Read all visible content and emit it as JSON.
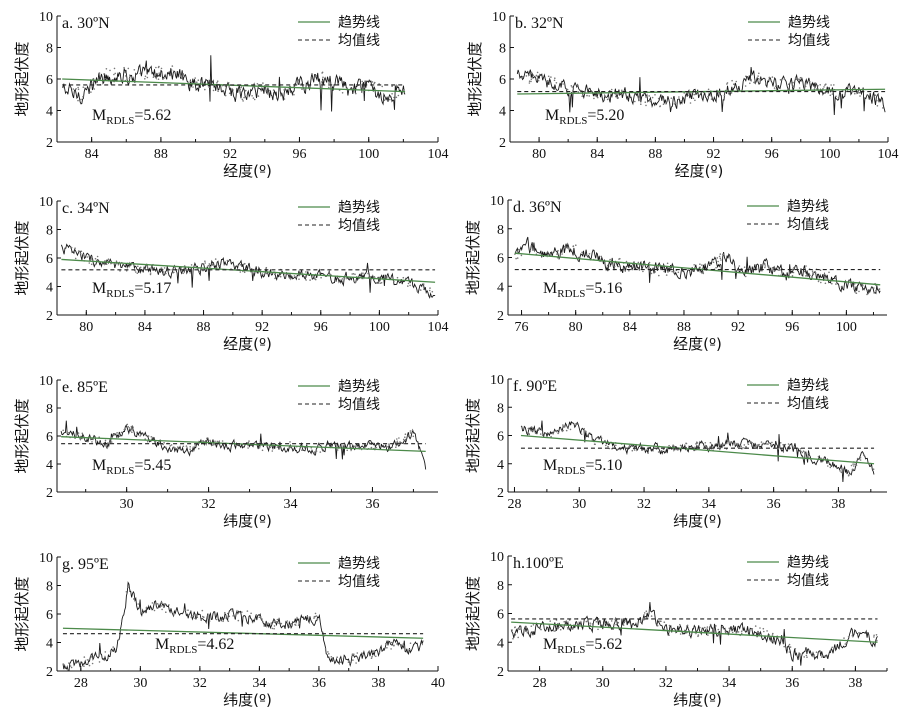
{
  "figure": {
    "colors": {
      "axis": "#111111",
      "data": "#1a1a1a",
      "trend": "#4c8a4a",
      "mean": "#222222"
    }
  },
  "chart_data": [
    {
      "id": "a",
      "type": "line",
      "title": "a. 30ºN",
      "xlabel": "经度(º)",
      "ylabel": "地形起伏度",
      "xlim": [
        82,
        104
      ],
      "ylim": [
        2,
        10
      ],
      "xticks": [
        84,
        88,
        92,
        96,
        100,
        104
      ],
      "yticks": [
        2,
        4,
        6,
        8,
        10
      ],
      "x_range": [
        82.3,
        102.1
      ],
      "mean_label": "M",
      "mean_subscript": "RDLS",
      "mean_value": "=5.62",
      "mean": 5.62,
      "trend": {
        "x": [
          82.3,
          102.1
        ],
        "y": [
          6.0,
          5.2
        ]
      },
      "profile": [
        [
          82.3,
          5.4
        ],
        [
          83,
          5.0
        ],
        [
          83.8,
          5.2
        ],
        [
          84.5,
          6.1
        ],
        [
          85.5,
          6.3
        ],
        [
          87,
          6.2
        ],
        [
          88.5,
          6.4
        ],
        [
          90,
          5.8
        ],
        [
          91,
          5.6
        ],
        [
          92,
          5.3
        ],
        [
          93,
          5.0
        ],
        [
          94,
          5.4
        ],
        [
          95,
          4.9
        ],
        [
          96,
          5.6
        ],
        [
          97,
          6.0
        ],
        [
          98,
          5.8
        ],
        [
          99,
          5.2
        ],
        [
          100,
          5.5
        ],
        [
          101,
          5.0
        ],
        [
          102.1,
          5.3
        ]
      ],
      "amp": 0.55,
      "legend": [
        {
          "name": "趋势线",
          "style": "trend"
        },
        {
          "name": "均值线",
          "style": "mean"
        }
      ]
    },
    {
      "id": "b",
      "type": "line",
      "title": "b. 32ºN",
      "xlabel": "经度(º)",
      "ylabel": "地形起伏度",
      "xlim": [
        78,
        104
      ],
      "ylim": [
        2,
        10
      ],
      "xticks": [
        80,
        84,
        88,
        92,
        96,
        100,
        104
      ],
      "yticks": [
        2,
        4,
        6,
        8,
        10
      ],
      "x_range": [
        78.5,
        103.8
      ],
      "mean_label": "M",
      "mean_subscript": "RDLS",
      "mean_value": "=5.20",
      "mean": 5.2,
      "trend": {
        "x": [
          78.5,
          103.8
        ],
        "y": [
          5.05,
          5.35
        ]
      },
      "profile": [
        [
          78.5,
          6.2
        ],
        [
          80,
          6.0
        ],
        [
          81.5,
          5.6
        ],
        [
          83,
          5.2
        ],
        [
          84.5,
          5.0
        ],
        [
          86,
          5.0
        ],
        [
          87.5,
          4.7
        ],
        [
          89,
          4.6
        ],
        [
          90.5,
          4.8
        ],
        [
          92,
          5.1
        ],
        [
          93.5,
          5.6
        ],
        [
          95,
          6.0
        ],
        [
          96.5,
          5.6
        ],
        [
          98,
          5.8
        ],
        [
          99.5,
          5.3
        ],
        [
          101,
          5.2
        ],
        [
          102.5,
          5.1
        ],
        [
          103.8,
          4.4
        ]
      ],
      "amp": 0.45,
      "legend": [
        {
          "name": "趋势线",
          "style": "trend"
        },
        {
          "name": "均值线",
          "style": "mean"
        }
      ]
    },
    {
      "id": "c",
      "type": "line",
      "title": "c. 34ºN",
      "xlabel": "经度(º)",
      "ylabel": "地形起伏度",
      "xlim": [
        78,
        104
      ],
      "ylim": [
        2,
        10
      ],
      "xticks": [
        80,
        84,
        88,
        92,
        96,
        100,
        104
      ],
      "yticks": [
        2,
        4,
        6,
        8,
        10
      ],
      "x_range": [
        78.3,
        103.8
      ],
      "mean_label": "M",
      "mean_subscript": "RDLS",
      "mean_value": "=5.17",
      "mean": 5.17,
      "trend": {
        "x": [
          78.3,
          103.8
        ],
        "y": [
          5.9,
          4.3
        ]
      },
      "profile": [
        [
          78.3,
          6.8
        ],
        [
          79.5,
          6.2
        ],
        [
          81,
          5.7
        ],
        [
          82.5,
          5.3
        ],
        [
          84,
          5.2
        ],
        [
          86,
          5.1
        ],
        [
          88,
          5.4
        ],
        [
          89.5,
          5.7
        ],
        [
          91,
          5.2
        ],
        [
          92.5,
          5.0
        ],
        [
          94,
          4.7
        ],
        [
          96,
          4.7
        ],
        [
          98,
          4.6
        ],
        [
          100,
          4.6
        ],
        [
          101.5,
          4.4
        ],
        [
          102.5,
          4.0
        ],
        [
          103.8,
          3.6
        ]
      ],
      "amp": 0.4,
      "legend": [
        {
          "name": "趋势线",
          "style": "trend"
        },
        {
          "name": "均值线",
          "style": "mean"
        }
      ]
    },
    {
      "id": "d",
      "type": "line",
      "title": "d. 36ºN",
      "xlabel": "经度(º)",
      "ylabel": "地形起伏度",
      "xlim": [
        75,
        103
      ],
      "ylim": [
        2,
        10
      ],
      "xticks": [
        76,
        80,
        84,
        88,
        92,
        96,
        100
      ],
      "yticks": [
        2,
        4,
        6,
        8,
        10
      ],
      "x_range": [
        75.5,
        102.5
      ],
      "mean_label": "M",
      "mean_subscript": "RDLS",
      "mean_value": "=5.16",
      "mean": 5.16,
      "trend": {
        "x": [
          75.5,
          102.5
        ],
        "y": [
          6.3,
          4.1
        ]
      },
      "profile": [
        [
          75.5,
          6.0
        ],
        [
          76.5,
          6.8
        ],
        [
          78,
          6.1
        ],
        [
          79.5,
          6.6
        ],
        [
          81,
          6.2
        ],
        [
          82.5,
          5.6
        ],
        [
          84,
          5.4
        ],
        [
          86,
          5.2
        ],
        [
          88,
          5.1
        ],
        [
          90,
          5.3
        ],
        [
          91,
          6.2
        ],
        [
          92,
          5.0
        ],
        [
          94,
          5.3
        ],
        [
          95.5,
          4.8
        ],
        [
          97,
          5.0
        ],
        [
          98.5,
          4.6
        ],
        [
          100,
          4.2
        ],
        [
          101.5,
          3.6
        ],
        [
          102.5,
          4.2
        ]
      ],
      "amp": 0.5,
      "legend": [
        {
          "name": "趋势线",
          "style": "trend"
        },
        {
          "name": "均值线",
          "style": "mean"
        }
      ]
    },
    {
      "id": "e",
      "type": "line",
      "title": "e. 85ºE",
      "xlabel": "纬度(º)",
      "ylabel": "地形起伏度",
      "xlim": [
        28.3,
        37.6
      ],
      "ylim": [
        2,
        10
      ],
      "xticks": [
        30,
        32,
        34,
        36
      ],
      "yticks": [
        2,
        4,
        6,
        8,
        10
      ],
      "x_range": [
        28.4,
        37.3
      ],
      "mean_label": "M",
      "mean_subscript": "RDLS",
      "mean_value": "=5.45",
      "mean": 5.45,
      "trend": {
        "x": [
          28.4,
          37.3
        ],
        "y": [
          5.95,
          4.9
        ]
      },
      "profile": [
        [
          28.4,
          6.2
        ],
        [
          29,
          6.0
        ],
        [
          29.5,
          5.4
        ],
        [
          30,
          6.6
        ],
        [
          30.5,
          5.9
        ],
        [
          31,
          5.2
        ],
        [
          31.5,
          5.0
        ],
        [
          32,
          5.6
        ],
        [
          32.5,
          5.3
        ],
        [
          33,
          5.4
        ],
        [
          33.5,
          5.2
        ],
        [
          34,
          5.3
        ],
        [
          34.5,
          5.0
        ],
        [
          35,
          5.3
        ],
        [
          35.5,
          5.2
        ],
        [
          36,
          5.3
        ],
        [
          36.5,
          5.3
        ],
        [
          37,
          6.2
        ],
        [
          37.3,
          3.8
        ]
      ],
      "amp": 0.35,
      "legend": [
        {
          "name": "趋势线",
          "style": "trend"
        },
        {
          "name": "均值线",
          "style": "mean"
        }
      ]
    },
    {
      "id": "f",
      "type": "line",
      "title": "f. 90ºE",
      "xlabel": "纬度(º)",
      "ylabel": "地形起伏度",
      "xlim": [
        27.8,
        39.5
      ],
      "ylim": [
        2,
        10
      ],
      "xticks": [
        28,
        30,
        32,
        34,
        36,
        38
      ],
      "yticks": [
        2,
        4,
        6,
        8,
        10
      ],
      "x_range": [
        28.2,
        39.1
      ],
      "mean_label": "M",
      "mean_subscript": "RDLS",
      "mean_value": "=5.10",
      "mean": 5.1,
      "trend": {
        "x": [
          28.2,
          39.1
        ],
        "y": [
          6.0,
          4.0
        ]
      },
      "profile": [
        [
          28.2,
          6.5
        ],
        [
          29,
          6.1
        ],
        [
          29.8,
          6.8
        ],
        [
          30.5,
          5.6
        ],
        [
          31.5,
          5.1
        ],
        [
          32.5,
          5.0
        ],
        [
          33.5,
          5.2
        ],
        [
          34.5,
          5.3
        ],
        [
          35.5,
          5.4
        ],
        [
          36.5,
          5.3
        ],
        [
          37.2,
          4.5
        ],
        [
          37.8,
          4.0
        ],
        [
          38.3,
          3.4
        ],
        [
          38.8,
          4.6
        ],
        [
          39.1,
          3.5
        ]
      ],
      "amp": 0.35,
      "legend": [
        {
          "name": "趋势线",
          "style": "trend"
        },
        {
          "name": "均值线",
          "style": "mean"
        }
      ]
    },
    {
      "id": "g",
      "type": "line",
      "title": "g. 95ºE",
      "xlabel": "纬度(º)",
      "ylabel": "地形起伏度",
      "xlim": [
        27.2,
        40
      ],
      "ylim": [
        2,
        10
      ],
      "xticks": [
        28,
        30,
        32,
        34,
        36,
        38,
        40
      ],
      "yticks": [
        2,
        4,
        6,
        8,
        10
      ],
      "x_range": [
        27.4,
        39.5
      ],
      "mean_label": "M",
      "mean_subscript": "RDLS",
      "mean_value": "=4.62",
      "mean": 4.62,
      "trend": {
        "x": [
          27.4,
          39.5
        ],
        "y": [
          5.0,
          4.3
        ]
      },
      "profile": [
        [
          27.4,
          2.3
        ],
        [
          28.5,
          2.8
        ],
        [
          29.2,
          3.5
        ],
        [
          29.6,
          8.0
        ],
        [
          30,
          6.0
        ],
        [
          30.5,
          6.6
        ],
        [
          31.5,
          6.0
        ],
        [
          32.5,
          5.8
        ],
        [
          33.5,
          5.9
        ],
        [
          34.5,
          5.3
        ],
        [
          35.5,
          5.5
        ],
        [
          36,
          5.8
        ],
        [
          36.3,
          3.0
        ],
        [
          37,
          2.8
        ],
        [
          37.5,
          3.0
        ],
        [
          38,
          3.2
        ],
        [
          38.5,
          4.0
        ],
        [
          39,
          3.6
        ],
        [
          39.5,
          3.8
        ]
      ],
      "amp": 0.4,
      "legend": [
        {
          "name": "趋势线",
          "style": "trend"
        },
        {
          "name": "均值线",
          "style": "mean"
        }
      ]
    },
    {
      "id": "h",
      "type": "line",
      "title": "h.100ºE",
      "xlabel": "纬度(º)",
      "ylabel": "地形起伏度",
      "xlim": [
        27,
        39
      ],
      "ylim": [
        2,
        10
      ],
      "xticks": [
        28,
        30,
        32,
        34,
        36,
        38
      ],
      "yticks": [
        2,
        4,
        6,
        8,
        10
      ],
      "x_range": [
        27.1,
        38.7
      ],
      "mean_label": "M",
      "mean_subscript": "RDLS",
      "mean_value": "=5.62",
      "mean": 5.62,
      "trend": {
        "x": [
          27.1,
          38.7
        ],
        "y": [
          5.4,
          4.0
        ]
      },
      "profile": [
        [
          27.1,
          4.6
        ],
        [
          28,
          5.0
        ],
        [
          29,
          5.3
        ],
        [
          30,
          5.2
        ],
        [
          31,
          5.3
        ],
        [
          31.5,
          6.0
        ],
        [
          32,
          4.9
        ],
        [
          33,
          4.8
        ],
        [
          34,
          4.9
        ],
        [
          35,
          4.7
        ],
        [
          35.5,
          4.2
        ],
        [
          36,
          3.3
        ],
        [
          37,
          3.1
        ],
        [
          37.5,
          3.8
        ],
        [
          38,
          4.6
        ],
        [
          38.7,
          4.3
        ]
      ],
      "amp": 0.45,
      "legend": [
        {
          "name": "趋势线",
          "style": "trend"
        },
        {
          "name": "均值线",
          "style": "mean"
        }
      ]
    }
  ]
}
